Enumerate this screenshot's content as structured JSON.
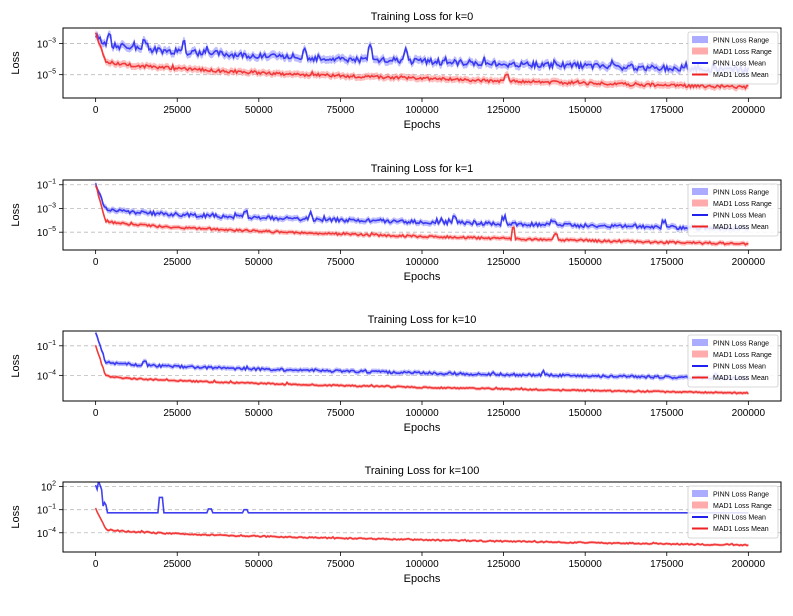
{
  "chart_data": [
    {
      "type": "line",
      "title": "Training Loss for k=0",
      "xlabel": "Epochs",
      "ylabel": "Loss",
      "yscale": "log",
      "xlim": [
        -10000,
        210000
      ],
      "ylim_exp": [
        -6.5,
        -2.0
      ],
      "x_ticks": [
        0,
        25000,
        50000,
        75000,
        100000,
        125000,
        150000,
        175000,
        200000
      ],
      "x_tick_labels": [
        "0",
        "25000",
        "50000",
        "75000",
        "100000",
        "125000",
        "150000",
        "175000",
        "200000"
      ],
      "y_ticks_exp": [
        -3,
        -5
      ],
      "y_tick_labels": [
        {
          "base": "10",
          "exp": "−3"
        },
        {
          "base": "10",
          "exp": "−5"
        }
      ],
      "grid": "horizontal dashed",
      "legend": [
        "PINN Loss Range",
        "MAD1 Loss Range",
        "PINN Loss Mean",
        "MAD1 Loss Mean"
      ],
      "legend_position": "top-right",
      "series": [
        {
          "name": "PINN Loss Mean",
          "start_exp": -2.5,
          "after_drop_exp": -3.0,
          "end_exp": -4.7,
          "noise": 0.28,
          "range_width": 0.25,
          "spikes": [
            [
              4000,
              0.55
            ],
            [
              15000,
              0.5
            ],
            [
              27000,
              0.55
            ],
            [
              64000,
              0.5
            ],
            [
              84000,
              0.8
            ],
            [
              95000,
              0.4
            ]
          ]
        },
        {
          "name": "MAD1 Loss Mean",
          "start_exp": -2.3,
          "after_drop_exp": -4.1,
          "end_exp": -5.8,
          "noise": 0.14,
          "range_width": 0.22,
          "spikes": [
            [
              126000,
              0.35
            ]
          ]
        }
      ]
    },
    {
      "type": "line",
      "title": "Training Loss for k=1",
      "xlabel": "Epochs",
      "ylabel": "Loss",
      "yscale": "log",
      "xlim": [
        -10000,
        210000
      ],
      "ylim_exp": [
        -6.5,
        -0.6
      ],
      "x_ticks": [
        0,
        25000,
        50000,
        75000,
        100000,
        125000,
        150000,
        175000,
        200000
      ],
      "x_tick_labels": [
        "0",
        "25000",
        "50000",
        "75000",
        "100000",
        "125000",
        "150000",
        "175000",
        "200000"
      ],
      "y_ticks_exp": [
        -1,
        -3,
        -5
      ],
      "y_tick_labels": [
        {
          "base": "10",
          "exp": "−1"
        },
        {
          "base": "10",
          "exp": "−3"
        },
        {
          "base": "10",
          "exp": "−5"
        }
      ],
      "grid": "horizontal dashed",
      "legend": [
        "PINN Loss Range",
        "MAD1 Loss Range",
        "PINN Loss Mean",
        "MAD1 Loss Mean"
      ],
      "legend_position": "top-right",
      "series": [
        {
          "name": "PINN Loss Mean",
          "start_exp": -1.0,
          "after_drop_exp": -3.0,
          "end_exp": -4.7,
          "noise": 0.22,
          "range_width": 0.25,
          "spikes": [
            [
              46000,
              0.45
            ],
            [
              66000,
              0.4
            ],
            [
              110000,
              0.45
            ],
            [
              125000,
              0.5
            ],
            [
              140000,
              0.4
            ],
            [
              174000,
              0.45
            ]
          ]
        },
        {
          "name": "MAD1 Loss Mean",
          "start_exp": -1.0,
          "after_drop_exp": -4.0,
          "end_exp": -6.0,
          "noise": 0.13,
          "range_width": 0.2,
          "spikes": [
            [
              128000,
              0.9
            ],
            [
              141000,
              0.45
            ]
          ]
        }
      ]
    },
    {
      "type": "line",
      "title": "Training Loss for k=10",
      "xlabel": "Epochs",
      "ylabel": "Loss",
      "yscale": "log",
      "xlim": [
        -10000,
        210000
      ],
      "ylim_exp": [
        -6.6,
        0.5
      ],
      "x_ticks": [
        0,
        25000,
        50000,
        75000,
        100000,
        125000,
        150000,
        175000,
        200000
      ],
      "x_tick_labels": [
        "0",
        "25000",
        "50000",
        "75000",
        "100000",
        "125000",
        "150000",
        "175000",
        "200000"
      ],
      "y_ticks_exp": [
        -1,
        -4
      ],
      "y_tick_labels": [
        {
          "base": "10",
          "exp": "−1"
        },
        {
          "base": "10",
          "exp": "−4"
        }
      ],
      "grid": "horizontal dashed",
      "legend": [
        "PINN Loss Range",
        "MAD1 Loss Range",
        "PINN Loss Mean",
        "MAD1 Loss Mean"
      ],
      "legend_position": "top-right",
      "series": [
        {
          "name": "PINN Loss Mean",
          "start_exp": 0.3,
          "after_drop_exp": -2.6,
          "end_exp": -4.3,
          "noise": 0.18,
          "range_width": 0.25,
          "spikes": [
            [
              15000,
              0.35
            ],
            [
              137000,
              0.35
            ],
            [
              190000,
              0.3
            ]
          ]
        },
        {
          "name": "MAD1 Loss Mean",
          "start_exp": -1.0,
          "after_drop_exp": -4.0,
          "end_exp": -5.8,
          "noise": 0.1,
          "range_width": 0.18,
          "spikes": []
        }
      ]
    },
    {
      "type": "line",
      "title": "Training Loss for k=100",
      "xlabel": "Epochs",
      "ylabel": "Loss",
      "yscale": "log",
      "xlim": [
        -10000,
        210000
      ],
      "ylim_exp": [
        -6.5,
        2.6
      ],
      "x_ticks": [
        0,
        25000,
        50000,
        75000,
        100000,
        125000,
        150000,
        175000,
        200000
      ],
      "x_tick_labels": [
        "0",
        "25000",
        "50000",
        "75000",
        "100000",
        "125000",
        "150000",
        "175000",
        "200000"
      ],
      "y_ticks_exp": [
        2,
        -1,
        -4
      ],
      "y_tick_labels": [
        {
          "base": "10",
          "exp": "2"
        },
        {
          "base": "10",
          "exp": "−1"
        },
        {
          "base": "10",
          "exp": "−4"
        }
      ],
      "grid": "horizontal dashed",
      "legend": [
        "PINN Loss Range",
        "MAD1 Loss Range",
        "PINN Loss Mean",
        "MAD1 Loss Mean"
      ],
      "legend_position": "top-right",
      "series": [
        {
          "name": "PINN Loss Mean",
          "start_exp": 2.2,
          "after_drop_exp": -1.4,
          "end_exp": -1.4,
          "noise": 0.0,
          "range_width": 0.03,
          "plateau": true,
          "spikes": [
            [
              1500,
              1.6
            ],
            [
              3000,
              1.0
            ],
            [
              20000,
              2.0
            ],
            [
              35000,
              0.5
            ],
            [
              46000,
              0.4
            ]
          ]
        },
        {
          "name": "MAD1 Loss Mean",
          "start_exp": -0.8,
          "after_drop_exp": -3.5,
          "end_exp": -5.6,
          "noise": 0.12,
          "range_width": 0.18,
          "spikes": []
        }
      ]
    }
  ],
  "colors": {
    "pinn_line": "#2222ee",
    "pinn_band": "#8888ff",
    "mad1_line": "#ee2222",
    "mad1_band": "#ff8888",
    "grid": "#bbbbbb"
  }
}
